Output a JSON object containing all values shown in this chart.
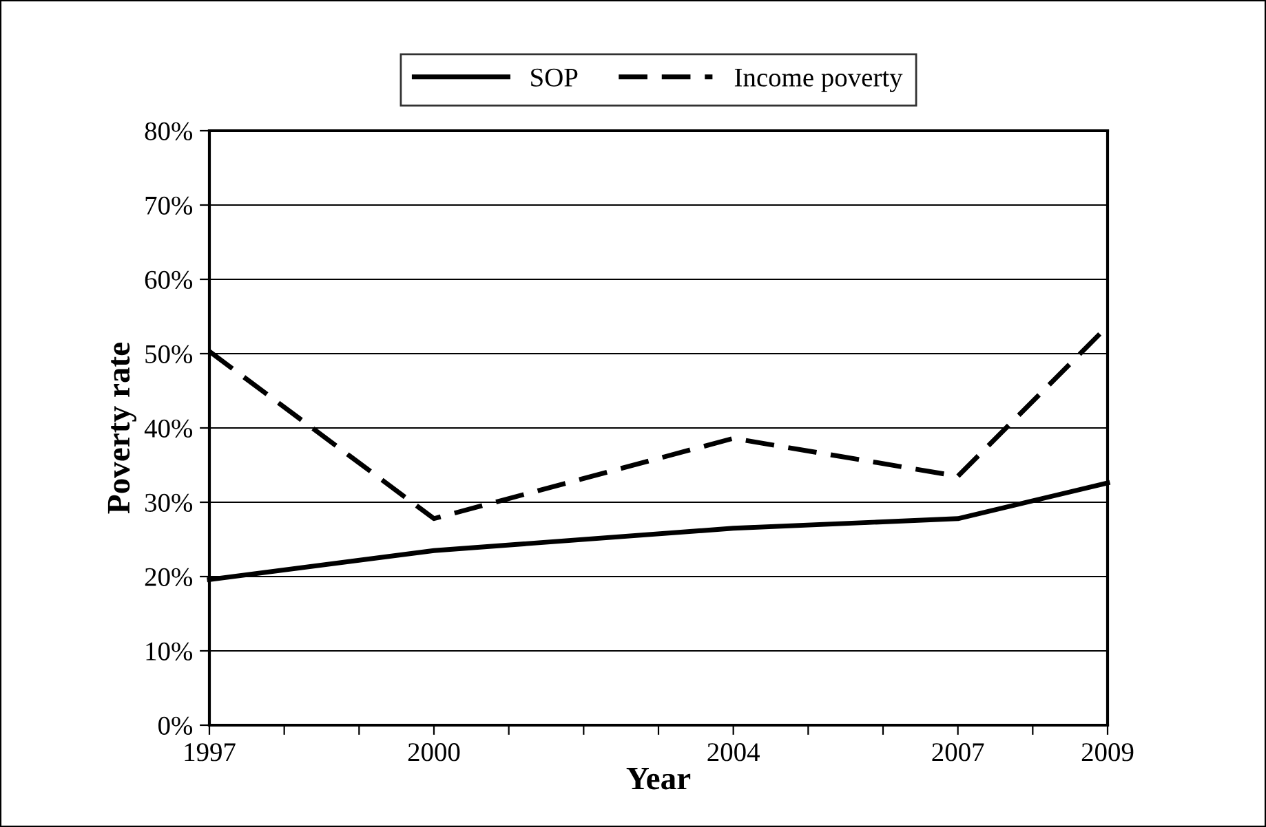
{
  "chart_data": {
    "type": "line",
    "xlabel": "Year",
    "ylabel": "Poverty rate",
    "x": [
      1997,
      2000,
      2004,
      2007,
      2009
    ],
    "series": [
      {
        "name": "SOP",
        "color": "#000000",
        "line_style": "solid",
        "values": [
          19.6,
          23.5,
          26.5,
          27.8,
          32.6
        ]
      },
      {
        "name": "Income poverty",
        "color": "#000000",
        "line_style": "dashed",
        "values": [
          50.3,
          27.8,
          38.6,
          33.5,
          53.7
        ]
      }
    ],
    "xlim": [
      1997,
      2009
    ],
    "xticks": [
      1997,
      {
        "value": 1998,
        "label": null
      },
      {
        "value": 1999,
        "label": null
      },
      2000,
      {
        "value": 2001,
        "label": null
      },
      {
        "value": 2002,
        "label": null
      },
      {
        "value": 2003,
        "label": null
      },
      2004,
      {
        "value": 2005,
        "label": null
      },
      {
        "value": 2006,
        "label": null
      },
      2007,
      {
        "value": 2008,
        "label": null
      },
      2009
    ],
    "ylim": [
      0,
      80
    ],
    "yticks": [
      {
        "value": 0,
        "label": "0%"
      },
      {
        "value": 10,
        "label": "10%"
      },
      {
        "value": 20,
        "label": "20%"
      },
      {
        "value": 30,
        "label": "30%"
      },
      {
        "value": 40,
        "label": "40%"
      },
      {
        "value": 50,
        "label": "50%"
      },
      {
        "value": 60,
        "label": "60%"
      },
      {
        "value": 70,
        "label": "70%"
      },
      {
        "value": 80,
        "label": "80%"
      }
    ],
    "grid": "y",
    "legend": "top",
    "marker": "none"
  }
}
